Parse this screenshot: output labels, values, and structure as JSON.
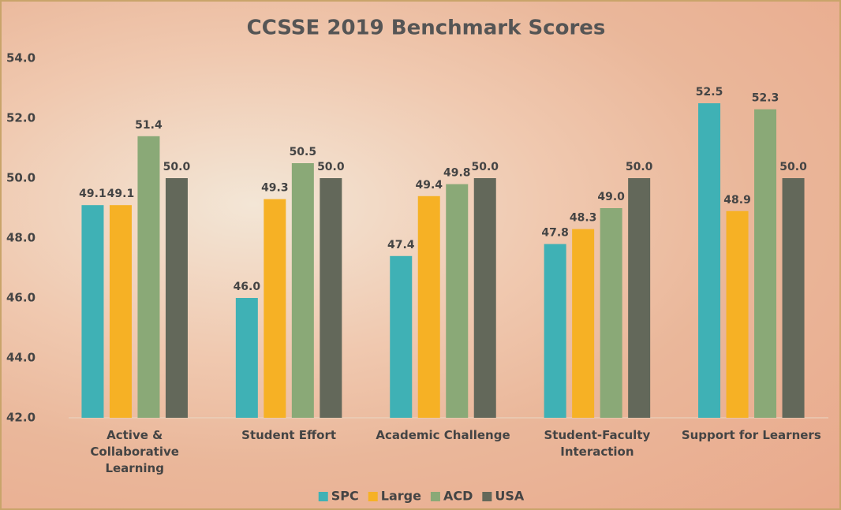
{
  "chart_data": {
    "type": "bar",
    "title": "CCSSE 2019 Benchmark Scores",
    "categories": [
      "Active & Collaborative Learning",
      "Student Effort",
      "Academic Challenge",
      "Student-Faculty Interaction",
      "Support for Learners"
    ],
    "series": [
      {
        "name": "SPC",
        "color": "#3fb1b5",
        "values": [
          49.1,
          46.0,
          47.4,
          47.8,
          52.5
        ],
        "value_labels": [
          "49.1",
          "46.0",
          "47.4",
          "47.8",
          "52.5"
        ]
      },
      {
        "name": "Large",
        "color": "#f6b125",
        "values": [
          49.1,
          49.3,
          49.4,
          48.3,
          48.9
        ],
        "value_labels": [
          "49.1",
          "49.3",
          "49.4",
          "48.3",
          "48.9"
        ]
      },
      {
        "name": "ACD",
        "color": "#8aa977",
        "values": [
          51.4,
          50.5,
          49.8,
          49.0,
          52.3
        ],
        "value_labels": [
          "51.4",
          "50.5",
          "49.8",
          "49.0",
          "52.3"
        ]
      },
      {
        "name": "USA",
        "color": "#63685a",
        "values": [
          50.0,
          50.0,
          50.0,
          50.0,
          50.0
        ],
        "value_labels": [
          "50.0",
          "50.0",
          "50.0",
          "50.0",
          "50.0"
        ]
      }
    ],
    "ylim": [
      42,
      54
    ],
    "yticks": [
      {
        "value": 42,
        "label": "42.0"
      },
      {
        "value": 44,
        "label": "44.0"
      },
      {
        "value": 46,
        "label": "46.0"
      },
      {
        "value": 48,
        "label": "48.0"
      },
      {
        "value": 50,
        "label": "50.0"
      },
      {
        "value": 52,
        "label": "52.0"
      },
      {
        "value": 54,
        "label": "54.0"
      }
    ],
    "grid": false
  }
}
